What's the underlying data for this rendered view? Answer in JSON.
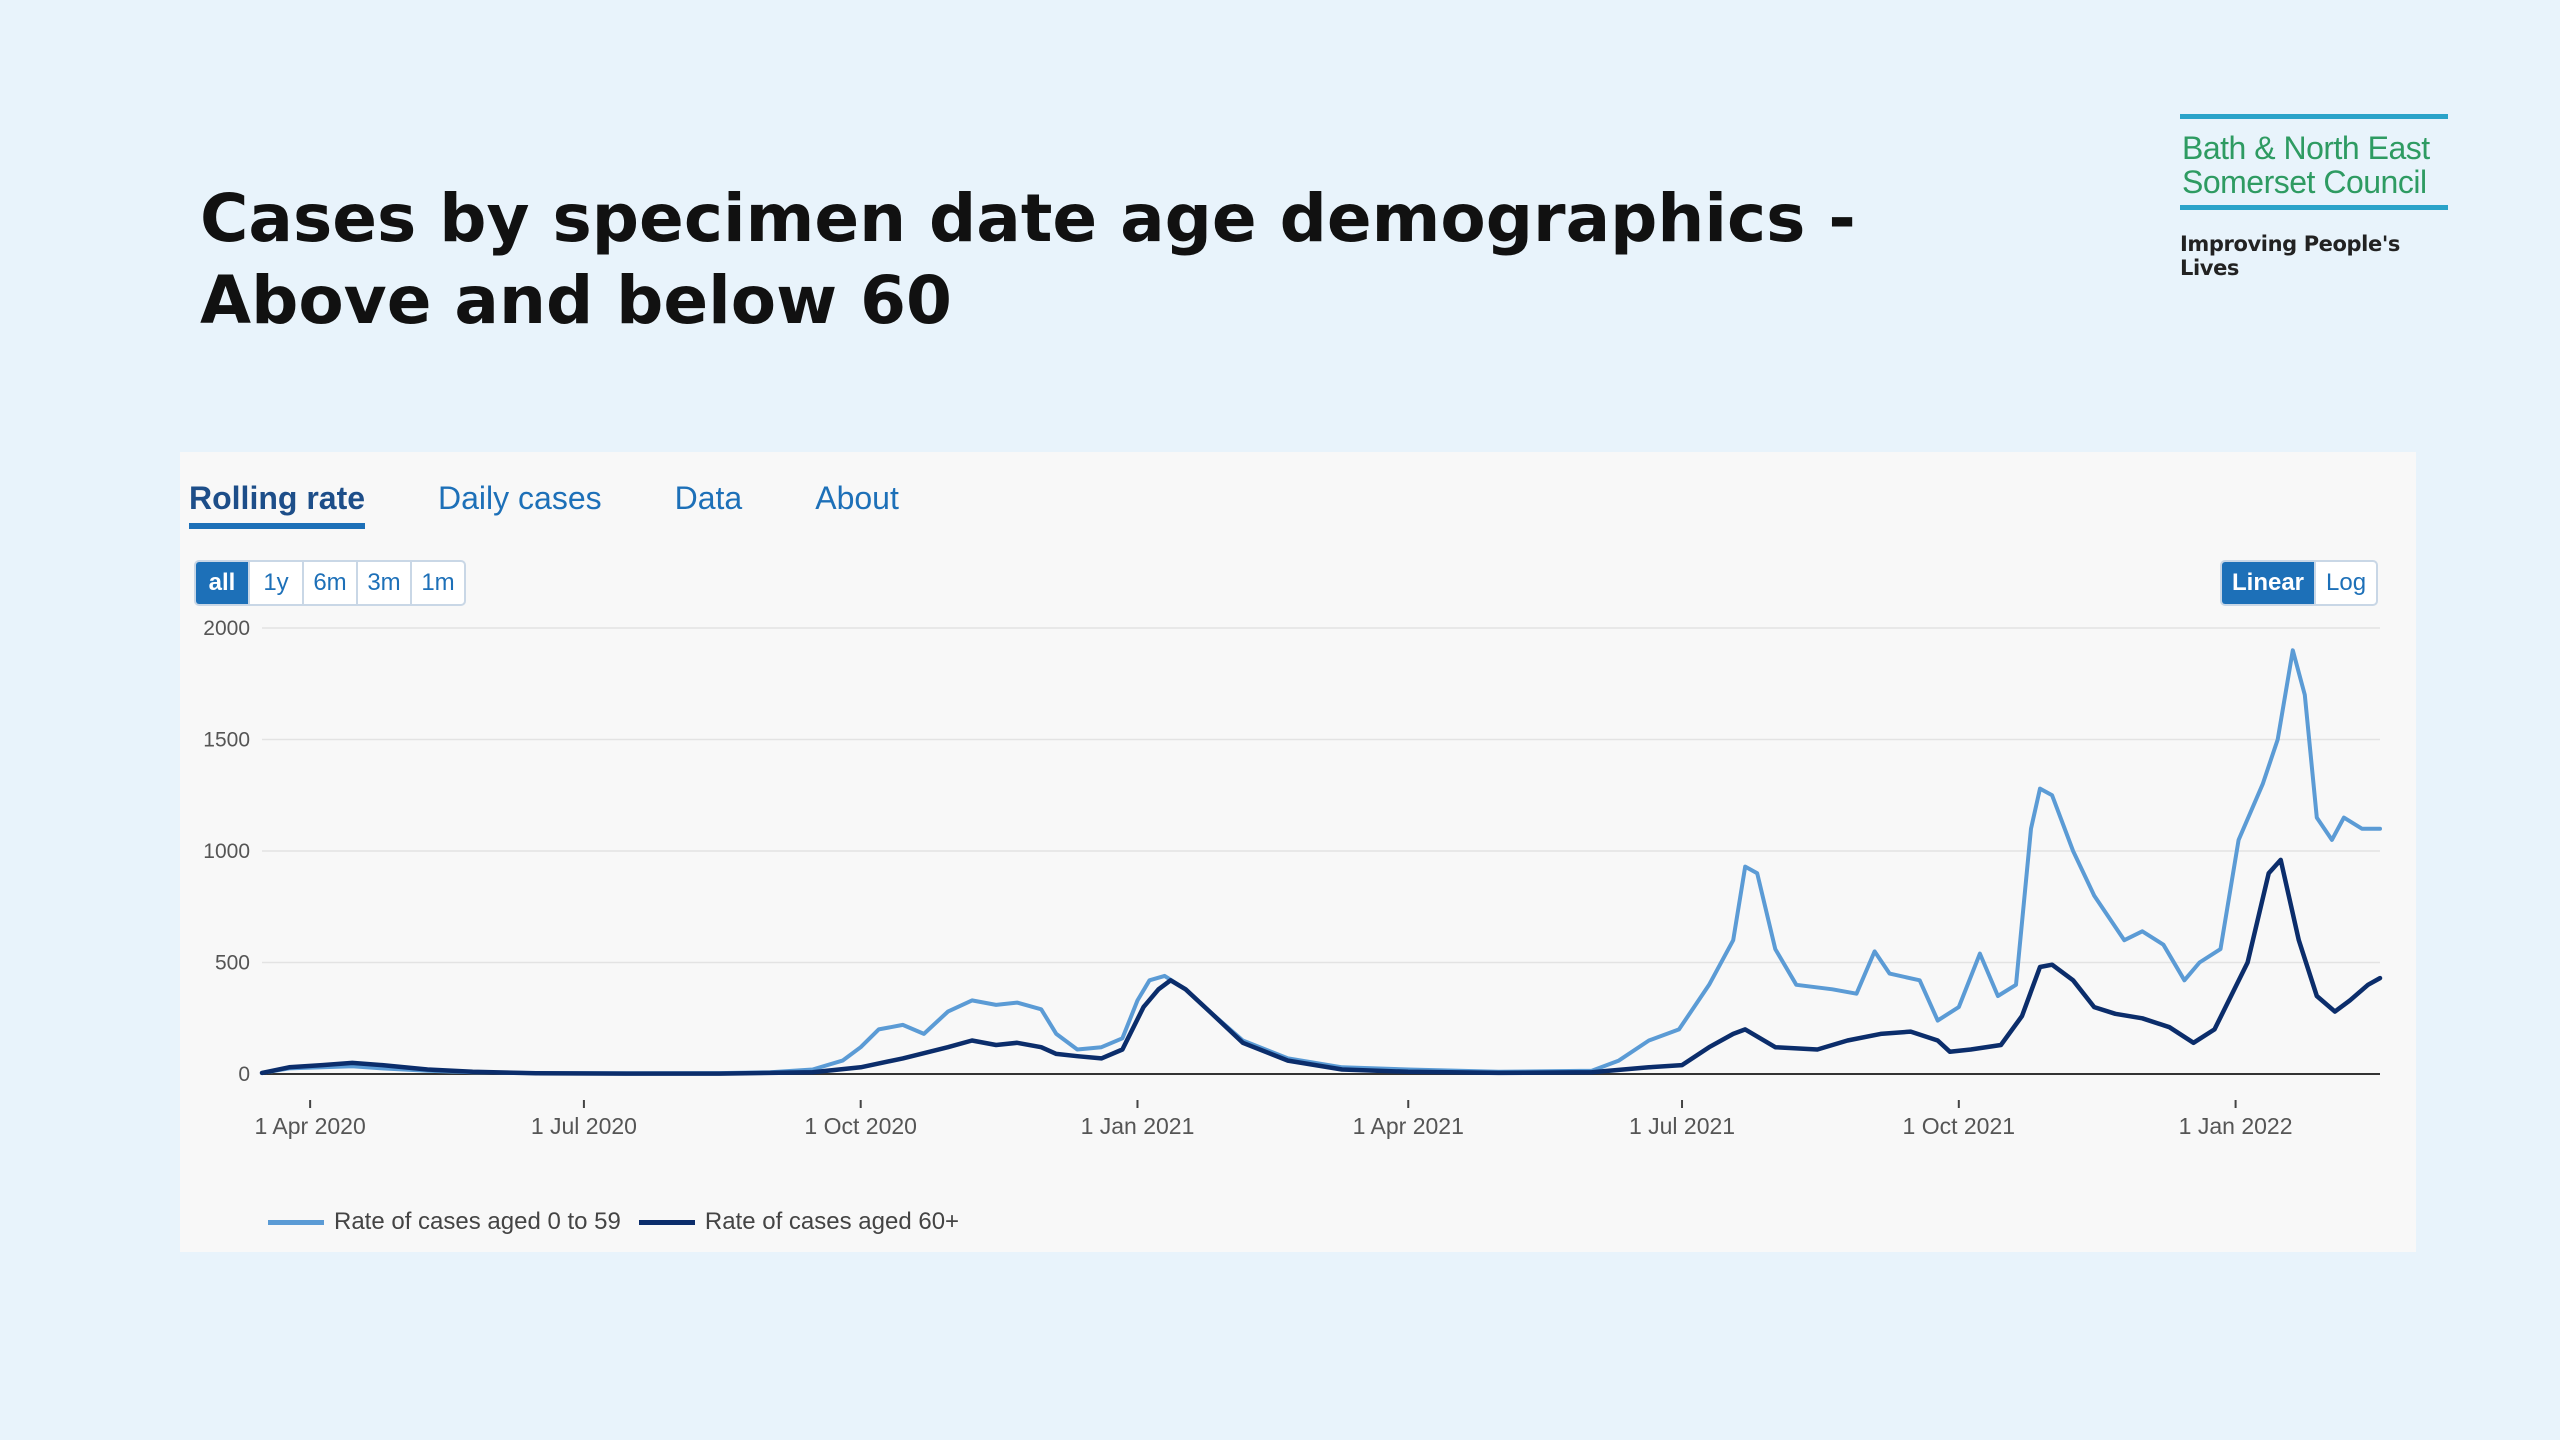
{
  "slide": {
    "title": "Cases by specimen date age demographics - Above and below 60"
  },
  "logo": {
    "line1": "Bath & North East",
    "line2": "Somerset Council",
    "tagline": "Improving People's Lives"
  },
  "tabs": [
    {
      "label": "Rolling rate",
      "active": true
    },
    {
      "label": "Daily cases",
      "active": false
    },
    {
      "label": "Data",
      "active": false
    },
    {
      "label": "About",
      "active": false
    }
  ],
  "range_buttons": [
    {
      "label": "all",
      "active": true
    },
    {
      "label": "1y",
      "active": false
    },
    {
      "label": "6m",
      "active": false
    },
    {
      "label": "3m",
      "active": false
    },
    {
      "label": "1m",
      "active": false
    }
  ],
  "scale_buttons": [
    {
      "label": "Linear",
      "active": true
    },
    {
      "label": "Log",
      "active": false
    }
  ],
  "colors": {
    "series_0_59": "#5b9bd5",
    "series_60": "#0b2d6b",
    "accent": "#1d70b8"
  },
  "chart_data": {
    "type": "line",
    "ylim": [
      0,
      2000
    ],
    "y_ticks": [
      0,
      500,
      1000,
      1500,
      2000
    ],
    "x_ticks": [
      {
        "date": "2020-04-01",
        "label": "1 Apr 2020"
      },
      {
        "date": "2020-07-01",
        "label": "1 Jul 2020"
      },
      {
        "date": "2020-10-01",
        "label": "1 Oct 2020"
      },
      {
        "date": "2021-01-01",
        "label": "1 Jan 2021"
      },
      {
        "date": "2021-04-01",
        "label": "1 Apr 2021"
      },
      {
        "date": "2021-07-01",
        "label": "1 Jul 2021"
      },
      {
        "date": "2021-10-01",
        "label": "1 Oct 2021"
      },
      {
        "date": "2022-01-01",
        "label": "1 Jan 2022"
      }
    ],
    "x_range": [
      "2020-03-16",
      "2022-02-18"
    ],
    "grid": true,
    "legend_position": "bottom-left",
    "series": [
      {
        "name": "Rate of cases aged 0 to 59",
        "color": "#5b9bd5",
        "points": [
          [
            "2020-03-16",
            5
          ],
          [
            "2020-03-25",
            25
          ],
          [
            "2020-04-05",
            30
          ],
          [
            "2020-04-15",
            35
          ],
          [
            "2020-04-25",
            25
          ],
          [
            "2020-05-10",
            15
          ],
          [
            "2020-05-25",
            8
          ],
          [
            "2020-06-15",
            4
          ],
          [
            "2020-07-15",
            3
          ],
          [
            "2020-08-15",
            4
          ],
          [
            "2020-09-01",
            8
          ],
          [
            "2020-09-15",
            20
          ],
          [
            "2020-09-25",
            60
          ],
          [
            "2020-10-01",
            120
          ],
          [
            "2020-10-07",
            200
          ],
          [
            "2020-10-15",
            220
          ],
          [
            "2020-10-22",
            180
          ],
          [
            "2020-10-30",
            280
          ],
          [
            "2020-11-07",
            330
          ],
          [
            "2020-11-15",
            310
          ],
          [
            "2020-11-22",
            320
          ],
          [
            "2020-11-30",
            290
          ],
          [
            "2020-12-05",
            180
          ],
          [
            "2020-12-12",
            110
          ],
          [
            "2020-12-20",
            120
          ],
          [
            "2020-12-27",
            160
          ],
          [
            "2021-01-01",
            330
          ],
          [
            "2021-01-05",
            420
          ],
          [
            "2021-01-10",
            440
          ],
          [
            "2021-01-17",
            380
          ],
          [
            "2021-01-25",
            280
          ],
          [
            "2021-02-05",
            150
          ],
          [
            "2021-02-20",
            70
          ],
          [
            "2021-03-10",
            30
          ],
          [
            "2021-04-01",
            20
          ],
          [
            "2021-05-01",
            10
          ],
          [
            "2021-06-01",
            15
          ],
          [
            "2021-06-10",
            60
          ],
          [
            "2021-06-20",
            150
          ],
          [
            "2021-06-30",
            200
          ],
          [
            "2021-07-10",
            400
          ],
          [
            "2021-07-18",
            600
          ],
          [
            "2021-07-22",
            930
          ],
          [
            "2021-07-26",
            900
          ],
          [
            "2021-08-01",
            560
          ],
          [
            "2021-08-08",
            400
          ],
          [
            "2021-08-20",
            380
          ],
          [
            "2021-08-28",
            360
          ],
          [
            "2021-09-03",
            550
          ],
          [
            "2021-09-08",
            450
          ],
          [
            "2021-09-18",
            420
          ],
          [
            "2021-09-24",
            240
          ],
          [
            "2021-10-01",
            300
          ],
          [
            "2021-10-08",
            540
          ],
          [
            "2021-10-14",
            350
          ],
          [
            "2021-10-20",
            400
          ],
          [
            "2021-10-25",
            1100
          ],
          [
            "2021-10-28",
            1280
          ],
          [
            "2021-11-01",
            1250
          ],
          [
            "2021-11-08",
            1000
          ],
          [
            "2021-11-15",
            800
          ],
          [
            "2021-11-25",
            600
          ],
          [
            "2021-12-01",
            640
          ],
          [
            "2021-12-08",
            580
          ],
          [
            "2021-12-15",
            420
          ],
          [
            "2021-12-20",
            500
          ],
          [
            "2021-12-27",
            560
          ],
          [
            "2022-01-02",
            1050
          ],
          [
            "2022-01-10",
            1300
          ],
          [
            "2022-01-15",
            1500
          ],
          [
            "2022-01-20",
            1900
          ],
          [
            "2022-01-24",
            1700
          ],
          [
            "2022-01-28",
            1150
          ],
          [
            "2022-02-02",
            1050
          ],
          [
            "2022-02-06",
            1150
          ],
          [
            "2022-02-12",
            1100
          ],
          [
            "2022-02-18",
            1100
          ]
        ]
      },
      {
        "name": "Rate of cases aged 60+",
        "color": "#0b2d6b",
        "points": [
          [
            "2020-03-16",
            5
          ],
          [
            "2020-03-25",
            30
          ],
          [
            "2020-04-05",
            40
          ],
          [
            "2020-04-15",
            50
          ],
          [
            "2020-04-25",
            40
          ],
          [
            "2020-05-10",
            20
          ],
          [
            "2020-05-25",
            10
          ],
          [
            "2020-06-15",
            3
          ],
          [
            "2020-07-15",
            2
          ],
          [
            "2020-08-15",
            2
          ],
          [
            "2020-09-01",
            5
          ],
          [
            "2020-09-15",
            8
          ],
          [
            "2020-10-01",
            30
          ],
          [
            "2020-10-15",
            70
          ],
          [
            "2020-10-30",
            120
          ],
          [
            "2020-11-07",
            150
          ],
          [
            "2020-11-15",
            130
          ],
          [
            "2020-11-22",
            140
          ],
          [
            "2020-11-30",
            120
          ],
          [
            "2020-12-05",
            90
          ],
          [
            "2020-12-12",
            80
          ],
          [
            "2020-12-20",
            70
          ],
          [
            "2020-12-27",
            110
          ],
          [
            "2021-01-03",
            300
          ],
          [
            "2021-01-08",
            380
          ],
          [
            "2021-01-12",
            420
          ],
          [
            "2021-01-17",
            380
          ],
          [
            "2021-01-25",
            280
          ],
          [
            "2021-02-05",
            140
          ],
          [
            "2021-02-20",
            60
          ],
          [
            "2021-03-10",
            20
          ],
          [
            "2021-04-01",
            10
          ],
          [
            "2021-05-01",
            5
          ],
          [
            "2021-06-01",
            8
          ],
          [
            "2021-06-20",
            30
          ],
          [
            "2021-07-01",
            40
          ],
          [
            "2021-07-10",
            120
          ],
          [
            "2021-07-18",
            180
          ],
          [
            "2021-07-22",
            200
          ],
          [
            "2021-08-01",
            120
          ],
          [
            "2021-08-15",
            110
          ],
          [
            "2021-08-25",
            150
          ],
          [
            "2021-09-05",
            180
          ],
          [
            "2021-09-15",
            190
          ],
          [
            "2021-09-24",
            150
          ],
          [
            "2021-09-28",
            100
          ],
          [
            "2021-10-05",
            110
          ],
          [
            "2021-10-15",
            130
          ],
          [
            "2021-10-22",
            260
          ],
          [
            "2021-10-28",
            480
          ],
          [
            "2021-11-01",
            490
          ],
          [
            "2021-11-08",
            420
          ],
          [
            "2021-11-15",
            300
          ],
          [
            "2021-11-22",
            270
          ],
          [
            "2021-12-01",
            250
          ],
          [
            "2021-12-10",
            210
          ],
          [
            "2021-12-18",
            140
          ],
          [
            "2021-12-25",
            200
          ],
          [
            "2022-01-05",
            500
          ],
          [
            "2022-01-12",
            900
          ],
          [
            "2022-01-16",
            960
          ],
          [
            "2022-01-22",
            600
          ],
          [
            "2022-01-28",
            350
          ],
          [
            "2022-02-03",
            280
          ],
          [
            "2022-02-08",
            330
          ],
          [
            "2022-02-14",
            400
          ],
          [
            "2022-02-18",
            430
          ]
        ]
      }
    ]
  }
}
